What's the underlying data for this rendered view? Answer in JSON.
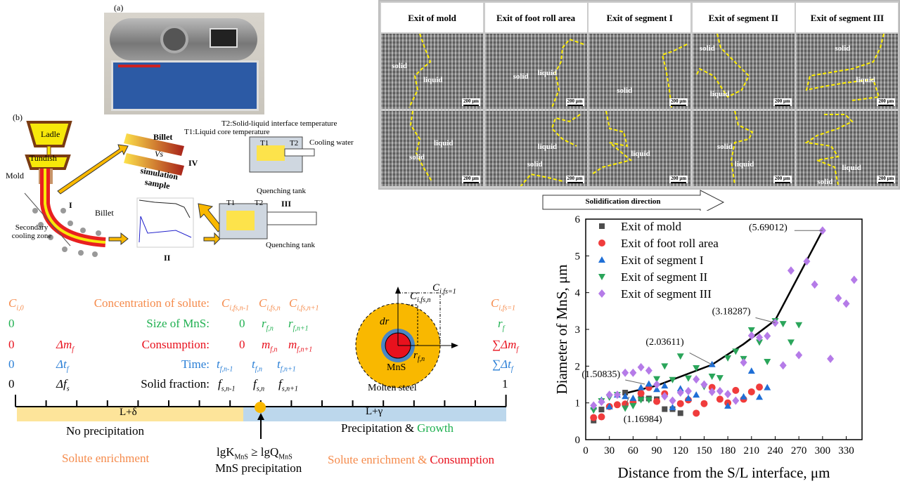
{
  "panel_a": {
    "label": "(a)"
  },
  "panel_b": {
    "label": "(b)",
    "ladle": "Ladle",
    "tundish": "Tundish",
    "mold": "Mold",
    "secondary_cooling": "Secondary cooling zone",
    "billet": "Billet",
    "stage_I": "I",
    "stage_II": "II",
    "stage_III": "III",
    "stage_IV": "IV",
    "billet_compare": "Billet",
    "vs": "Vs",
    "simulation_sample": "simulation sample",
    "t1_label": "T1:Liquid core temperature",
    "t2_label": "T2:Solid-liquid interface temperature",
    "t1": "T1",
    "t2": "T2",
    "cooling_water": "Cooling water",
    "quenching_tank": "Quenching tank"
  },
  "micrographs": {
    "columns": [
      "Exit of mold",
      "Exit of foot roll area",
      "Exit of segment I",
      "Exit of segment II",
      "Exit of segment III"
    ],
    "solid": "solid",
    "liquid": "liquid",
    "scale": "200 μm",
    "direction": "Solidification direction"
  },
  "schematic": {
    "labels": {
      "concentration": "Concentration of solute:",
      "size": "Size of MnS:",
      "consumption": "Consumption:",
      "time": "Time:",
      "solid_fraction": "Solid fraction:"
    },
    "left": {
      "concentration": "C",
      "concentration_sub": "i,0",
      "size": "0",
      "consumption": "0",
      "time": "0",
      "solid_fraction": "0"
    },
    "delta": {
      "m": "Δm",
      "m_sub": "f",
      "t": "Δt",
      "t_sub": "f",
      "f": "Δf",
      "f_sub": "s"
    },
    "mid": {
      "c1": "C",
      "c1_sub": "i,fs,n-1",
      "c2": "C",
      "c2_sub": "i,fs,n",
      "c3": "C",
      "c3_sub": "i,fs,n+1",
      "r0": "0",
      "r1": "r",
      "r1_sub": "f,n",
      "r2": "r",
      "r2_sub": "f,n+1",
      "m0": "0",
      "m1": "m",
      "m1_sub": "f,n",
      "m2": "m",
      "m2_sub": "f,n+1",
      "t1": "t",
      "t1_sub": "f,n-1",
      "t2": "t",
      "t2_sub": "f,n",
      "t3": "t",
      "t3_sub": "f,n+1",
      "f1": "f",
      "f1_sub": "s,n-1",
      "f2": "f",
      "f2_sub": "s,n",
      "f3": "f",
      "f3_sub": "s,n+1"
    },
    "right": {
      "concentration": "C",
      "concentration_sub": "i,fs=1",
      "size": "r",
      "size_sub": "f",
      "consumption": "∑Δm",
      "consumption_sub": "f",
      "time": "∑Δt",
      "time_sub": "f",
      "solid_fraction": "1"
    },
    "circle": {
      "c_top": "C",
      "c_top_sub": "i,fs=1",
      "c_n": "C",
      "c_n_sub": "i,fs,n",
      "dr": "dr",
      "mns": "MnS",
      "r": "r",
      "r_sub": "f,n",
      "molten": "Molten steel"
    },
    "phase_left": "L+δ",
    "phase_right": "L+γ",
    "no_precip": "No precipitation",
    "precip": "Precipitation",
    "amp": "&",
    "growth": "Growth",
    "solute_enrich": "Solute enrichment",
    "consumption_word": "Consumption",
    "condition": "lgK",
    "condition_sub1": "MnS",
    "condition_mid": " ≥ lgQ",
    "condition_sub2": "MnS",
    "mns_precip": "MnS precipitation",
    "colors": {
      "orange": "#f58b4c",
      "green": "#1fb050",
      "red": "#e8111d",
      "blue": "#2a7fd6",
      "yellow_band": "#fde49a",
      "blue_band": "#bcd7ec",
      "marker": "#f9b800"
    }
  },
  "chart_data": {
    "type": "scatter",
    "xlabel": "Distance from the S/L interface, μm",
    "ylabel": "Diameter of MnS, μm",
    "xlim": [
      0,
      350
    ],
    "ylim": [
      0,
      6
    ],
    "xticks": [
      0,
      30,
      60,
      90,
      120,
      150,
      180,
      210,
      240,
      270,
      300,
      330
    ],
    "yticks": [
      0,
      1,
      2,
      3,
      4,
      5,
      6
    ],
    "legend": "top-left",
    "series": [
      {
        "name": "Exit of mold",
        "marker": "square",
        "color": "#4d4d4d",
        "points": [
          [
            10,
            0.52
          ],
          [
            20,
            0.82
          ],
          [
            50,
            1.28
          ],
          [
            70,
            1.12
          ],
          [
            80,
            1.12
          ],
          [
            90,
            1.1
          ],
          [
            100,
            0.83
          ],
          [
            110,
            0.83
          ],
          [
            120,
            0.72
          ]
        ]
      },
      {
        "name": "Exit of foot roll area",
        "marker": "circle",
        "color": "#f03c3c",
        "points": [
          [
            10,
            0.6
          ],
          [
            20,
            0.62
          ],
          [
            30,
            0.9
          ],
          [
            40,
            0.95
          ],
          [
            50,
            0.97
          ],
          [
            60,
            1.02
          ],
          [
            70,
            1.26
          ],
          [
            80,
            1.42
          ],
          [
            90,
            1.04
          ],
          [
            100,
            1.25
          ],
          [
            120,
            0.98
          ],
          [
            130,
            1.08
          ],
          [
            140,
            0.72
          ],
          [
            150,
            0.98
          ],
          [
            160,
            1.42
          ],
          [
            170,
            1.1
          ],
          [
            180,
            1.0
          ],
          [
            190,
            1.34
          ],
          [
            200,
            1.1
          ],
          [
            210,
            1.3
          ],
          [
            220,
            1.43
          ]
        ]
      },
      {
        "name": "Exit of segment I",
        "marker": "triangle-up",
        "color": "#1f6fd6",
        "points": [
          [
            10,
            0.9
          ],
          [
            20,
            1.08
          ],
          [
            30,
            0.9
          ],
          [
            40,
            1.22
          ],
          [
            50,
            1.18
          ],
          [
            60,
            1.13
          ],
          [
            70,
            1.42
          ],
          [
            80,
            1.52
          ],
          [
            90,
            1.37
          ],
          [
            100,
            1.47
          ],
          [
            110,
            0.88
          ],
          [
            120,
            1.39
          ],
          [
            130,
            1.13
          ],
          [
            140,
            1.22
          ],
          [
            160,
            2.05
          ],
          [
            180,
            0.92
          ],
          [
            200,
            1.17
          ],
          [
            210,
            1.87
          ],
          [
            220,
            1.16
          ],
          [
            230,
            1.42
          ]
        ]
      },
      {
        "name": "Exit of segment II",
        "marker": "triangle-down",
        "color": "#2aa55a",
        "points": [
          [
            10,
            0.8
          ],
          [
            20,
            1.05
          ],
          [
            30,
            1.15
          ],
          [
            40,
            1.22
          ],
          [
            50,
            0.85
          ],
          [
            60,
            0.92
          ],
          [
            70,
            1.08
          ],
          [
            80,
            1.08
          ],
          [
            90,
            1.65
          ],
          [
            100,
            2.0
          ],
          [
            110,
            1.63
          ],
          [
            120,
            2.27
          ],
          [
            130,
            1.67
          ],
          [
            140,
            1.95
          ],
          [
            150,
            1.44
          ],
          [
            160,
            1.72
          ],
          [
            170,
            1.68
          ],
          [
            180,
            2.22
          ],
          [
            190,
            2.4
          ],
          [
            200,
            2.2
          ],
          [
            210,
            2.98
          ],
          [
            220,
            2.65
          ],
          [
            230,
            2.12
          ],
          [
            240,
            3.23
          ],
          [
            250,
            3.15
          ],
          [
            260,
            2.65
          ],
          [
            270,
            3.12
          ]
        ]
      },
      {
        "name": "Exit of segment III",
        "marker": "diamond",
        "color": "#b57be8",
        "points": [
          [
            10,
            0.93
          ],
          [
            20,
            1.03
          ],
          [
            30,
            1.22
          ],
          [
            40,
            1.22
          ],
          [
            50,
            1.82
          ],
          [
            60,
            1.82
          ],
          [
            70,
            1.97
          ],
          [
            80,
            1.88
          ],
          [
            90,
            1.5
          ],
          [
            100,
            1.18
          ],
          [
            110,
            1.06
          ],
          [
            120,
            1.28
          ],
          [
            130,
            1.32
          ],
          [
            140,
            1.64
          ],
          [
            150,
            1.5
          ],
          [
            160,
            1.3
          ],
          [
            170,
            1.32
          ],
          [
            180,
            1.24
          ],
          [
            190,
            1.06
          ],
          [
            200,
            2.1
          ],
          [
            210,
            2.83
          ],
          [
            220,
            2.78
          ],
          [
            230,
            2.82
          ],
          [
            240,
            3.18
          ],
          [
            250,
            2.02
          ],
          [
            260,
            4.6
          ],
          [
            270,
            2.3
          ],
          [
            280,
            4.85
          ],
          [
            290,
            4.22
          ],
          [
            300,
            5.69
          ],
          [
            310,
            2.2
          ],
          [
            320,
            3.85
          ],
          [
            330,
            3.7
          ],
          [
            340,
            4.35
          ]
        ]
      }
    ],
    "trend_line": [
      [
        50,
        1.26
      ],
      [
        90,
        1.47
      ],
      [
        160,
        2.04
      ],
      [
        200,
        2.6
      ],
      [
        240,
        3.25
      ],
      [
        300,
        5.69
      ]
    ],
    "annotations": [
      {
        "text": "(1.16984)",
        "x": 55,
        "y": 1.17
      },
      {
        "text": "(1.50835)",
        "x": 75,
        "y": 1.51
      },
      {
        "text": "(2.03611)",
        "x": 160,
        "y": 2.04
      },
      {
        "text": "(3.18287)",
        "x": 240,
        "y": 3.18
      },
      {
        "text": "(5.69012)",
        "x": 300,
        "y": 5.69
      }
    ]
  }
}
